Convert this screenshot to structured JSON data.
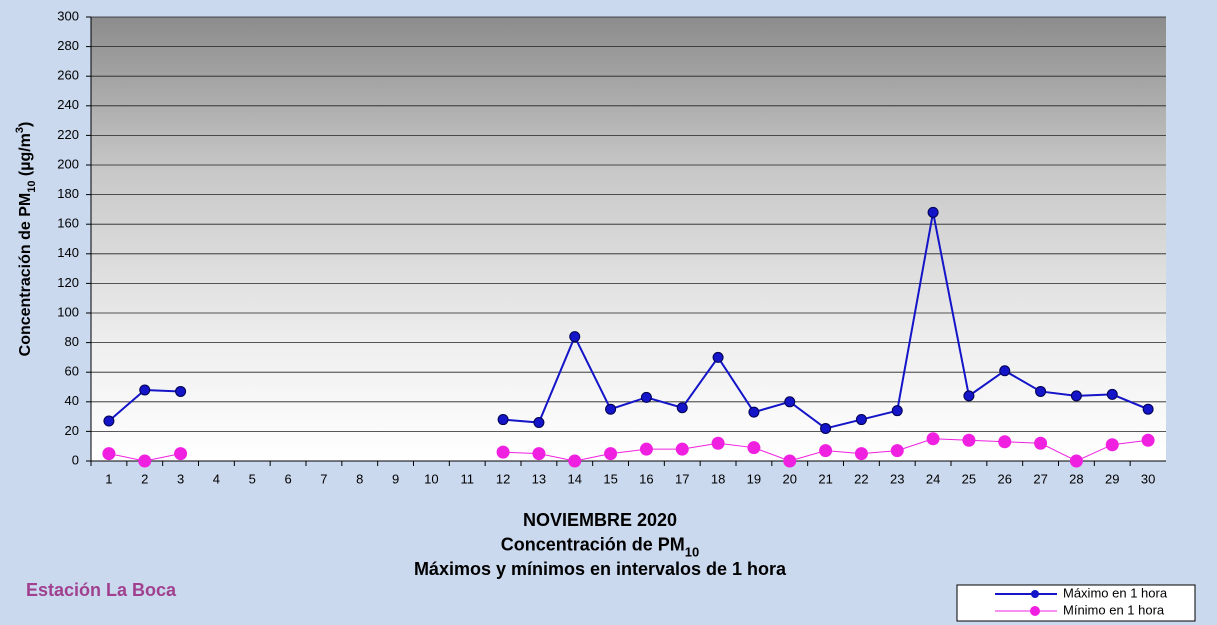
{
  "chart_data": {
    "type": "line",
    "title": [
      [
        "NOVIEMBRE 2020"
      ],
      [
        "Concentración de PM",
        "10"
      ],
      [
        "Máximos y mínimos en intervalos de 1 hora"
      ]
    ],
    "station": "Estación La Boca",
    "y_label": [
      "Concentración de PM",
      "10",
      " (µg/m",
      "3",
      ")"
    ],
    "categories": [
      "1",
      "2",
      "3",
      "4",
      "5",
      "6",
      "7",
      "8",
      "9",
      "10",
      "11",
      "12",
      "13",
      "14",
      "15",
      "16",
      "17",
      "18",
      "19",
      "20",
      "21",
      "22",
      "23",
      "24",
      "25",
      "26",
      "27",
      "28",
      "29",
      "30"
    ],
    "series": [
      {
        "name": "Máximo en 1 hora",
        "color": "#1414c8",
        "values": [
          27,
          48,
          47,
          null,
          null,
          null,
          null,
          null,
          null,
          null,
          null,
          28,
          26,
          84,
          35,
          43,
          36,
          70,
          33,
          40,
          22,
          28,
          34,
          168,
          44,
          61,
          47,
          44,
          45,
          35
        ]
      },
      {
        "name": "Mínimo en 1 hora",
        "color": "#f020e0",
        "values": [
          5,
          0,
          5,
          null,
          null,
          null,
          null,
          null,
          null,
          null,
          null,
          6,
          5,
          0,
          5,
          8,
          8,
          12,
          9,
          0,
          7,
          5,
          7,
          15,
          14,
          13,
          12,
          0,
          11,
          14
        ]
      }
    ],
    "ylim": [
      0,
      300
    ],
    "yticks": [
      0,
      20,
      40,
      60,
      80,
      100,
      120,
      140,
      160,
      180,
      200,
      220,
      240,
      260,
      280,
      300
    ],
    "grid": true,
    "legend": "bottom-right"
  }
}
